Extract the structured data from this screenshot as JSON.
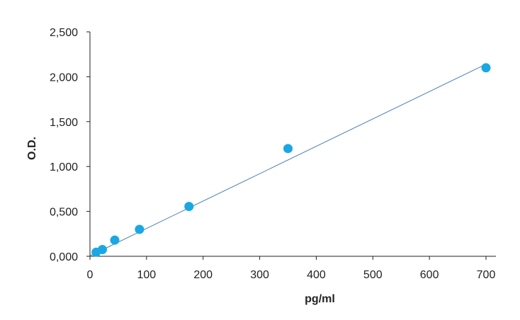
{
  "chart_data": {
    "type": "scatter",
    "title": "",
    "xlabel": "pg/ml",
    "ylabel": "O.D.",
    "xlim": [
      0,
      700
    ],
    "ylim": [
      0,
      2.5
    ],
    "x_ticks": [
      0,
      100,
      200,
      300,
      400,
      500,
      600,
      700
    ],
    "x_tick_labels": [
      "0",
      "100",
      "200",
      "300",
      "400",
      "500",
      "600",
      "700"
    ],
    "y_ticks": [
      0,
      0.5,
      1.0,
      1.5,
      2.0,
      2.5
    ],
    "y_tick_labels": [
      "0,000",
      "0,500",
      "1,000",
      "1,500",
      "2,000",
      "2,500"
    ],
    "grid": false,
    "legend": "none",
    "series": [
      {
        "x": [
          10.9,
          21.9,
          43.8,
          87.5,
          175,
          350,
          700
        ],
        "y": [
          0.045,
          0.075,
          0.18,
          0.3,
          0.555,
          1.2,
          2.1
        ]
      }
    ],
    "trendline": {
      "type": "linear",
      "x_start": 0,
      "x_end": 700,
      "y_start": 0.005,
      "y_end": 2.14
    },
    "colors": {
      "marker": "#1aa7e3",
      "trendline": "#4a7fb8",
      "axis": "#222222"
    }
  }
}
